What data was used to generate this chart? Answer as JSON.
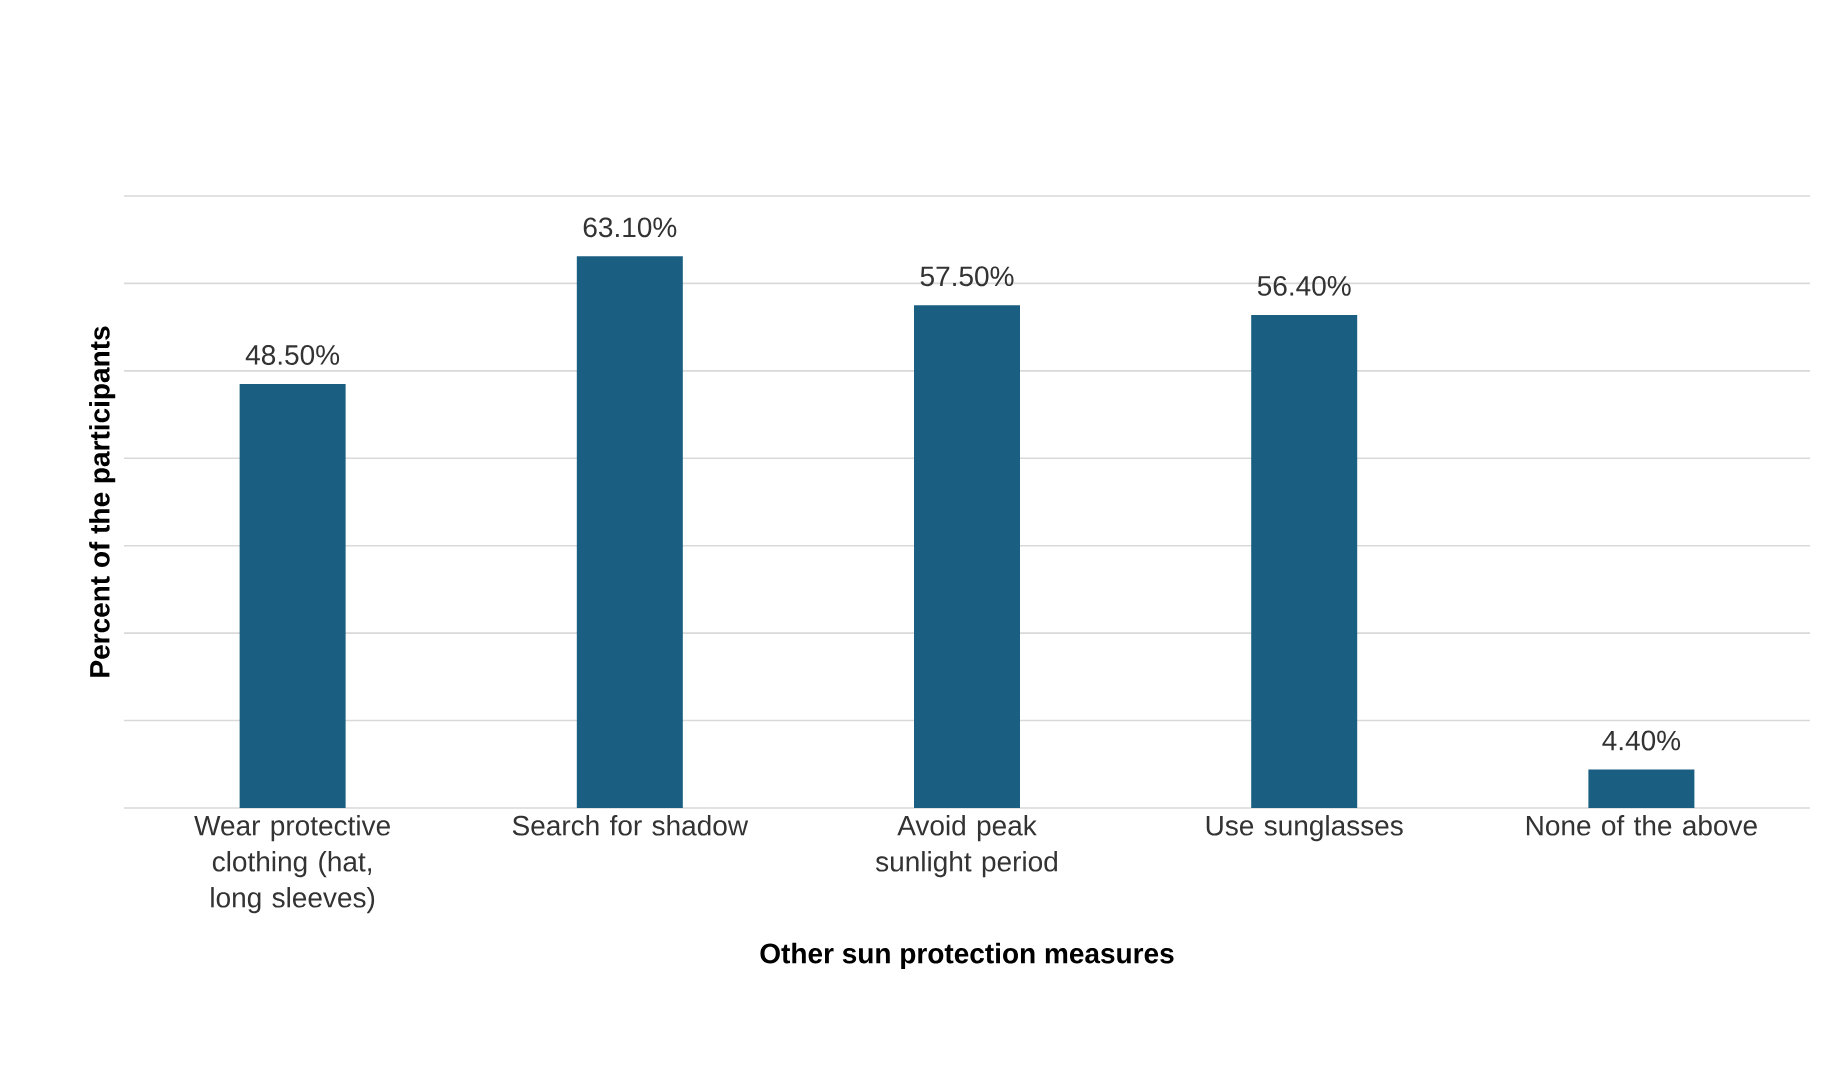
{
  "chart_data": {
    "type": "bar",
    "xlabel": "Other sun protection measures",
    "ylabel": "Percent of the participants",
    "categories": [
      "Wear protective clothing (hat, long sleeves)",
      "Search for shadow",
      "Avoid peak sunlight period",
      "Use sunglasses",
      "None of the above"
    ],
    "values": [
      48.5,
      63.1,
      57.5,
      56.4,
      4.4
    ],
    "value_labels": [
      "48.50%",
      "63.10%",
      "57.50%",
      "56.40%",
      "4.40%"
    ],
    "color": "#1a5f82",
    "ylim": [
      0,
      70
    ],
    "yticks": [
      {
        "value": 0,
        "label": null
      },
      {
        "value": 10,
        "label": null
      },
      {
        "value": 20,
        "label": null
      },
      {
        "value": 30,
        "label": null
      },
      {
        "value": 40,
        "label": null
      },
      {
        "value": 50,
        "label": null
      },
      {
        "value": 60,
        "label": null
      },
      {
        "value": 70,
        "label": null
      }
    ],
    "tick_labels": "x",
    "grid": "y"
  }
}
